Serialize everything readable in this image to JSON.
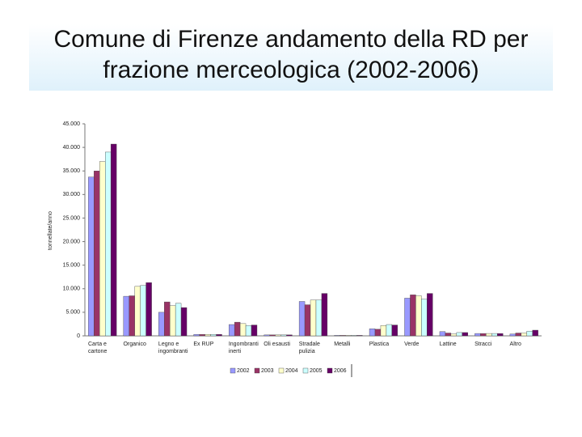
{
  "chart_data": {
    "type": "bar",
    "title": "Comune di Firenze andamento della RD per frazione merceologica (2002-2006)",
    "y_label": "tonnellate/anno",
    "categories": [
      "Carta e cartone",
      "Organico",
      "Legno e ingombranti",
      "Ex RUP",
      "Ingombranti inerti",
      "Oli esausti",
      "Stradale pulizia",
      "Metalli",
      "Plastica",
      "Verde",
      "Lattine",
      "Stracci",
      "Altro"
    ],
    "series": [
      {
        "name": "2002",
        "color": "#9999ff",
        "values": [
          33700,
          8400,
          5000,
          300,
          2400,
          200,
          7300,
          100,
          1500,
          8000,
          900,
          500,
          400
        ]
      },
      {
        "name": "2003",
        "color": "#993366",
        "values": [
          35000,
          8500,
          7200,
          300,
          2900,
          200,
          6600,
          100,
          1400,
          8700,
          600,
          500,
          600
        ]
      },
      {
        "name": "2004",
        "color": "#ffffcc",
        "values": [
          37000,
          10500,
          6400,
          300,
          2600,
          200,
          7600,
          100,
          2200,
          8500,
          400,
          500,
          600
        ]
      },
      {
        "name": "2005",
        "color": "#ccffff",
        "values": [
          39000,
          10700,
          6900,
          300,
          2200,
          200,
          7600,
          100,
          2400,
          7800,
          700,
          500,
          1000
        ]
      },
      {
        "name": "2006",
        "color": "#660066",
        "values": [
          40700,
          11300,
          6000,
          300,
          2300,
          200,
          9000,
          100,
          2300,
          9000,
          700,
          500,
          1200
        ]
      }
    ],
    "ylim": [
      0,
      45000
    ],
    "yticks": [
      0,
      {
        "value": 5000,
        "label": "5.000"
      },
      {
        "value": 10000,
        "label": "10.000"
      },
      {
        "value": 15000,
        "label": "15.000"
      },
      {
        "value": 20000,
        "label": "20.000"
      },
      {
        "value": 25000,
        "label": "25.000"
      },
      {
        "value": 30000,
        "label": "30.000"
      },
      {
        "value": 35000,
        "label": "35.000"
      },
      {
        "value": 40000,
        "label": "40.000"
      },
      {
        "value": 45000,
        "label": "45.000"
      }
    ],
    "grid": false
  }
}
